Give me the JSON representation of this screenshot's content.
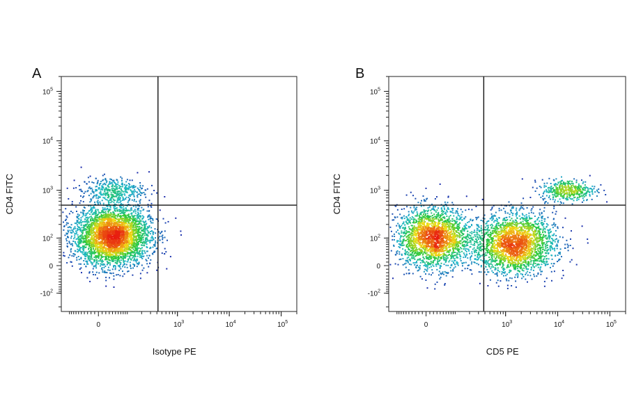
{
  "figure": {
    "colors": {
      "low": "#1a1aa8",
      "mid": "#1fb8c8",
      "high": "#e81c10",
      "frame": "#222222",
      "gate": "#111111"
    }
  },
  "chart_data": [
    {
      "panel": "A",
      "type": "scatter",
      "style": "density dot plot (pseudocolor)",
      "scale": "biexponential (logicle)",
      "xlabel": "Isotype PE",
      "ylabel": "CD4 FITC",
      "x_ticks": [
        {
          "value": 0,
          "base": "0",
          "exp": ""
        },
        {
          "value": 1000,
          "base": "10",
          "exp": "3"
        },
        {
          "value": 10000,
          "base": "10",
          "exp": "4"
        },
        {
          "value": 100000,
          "base": "10",
          "exp": "5"
        }
      ],
      "y_ticks": [
        {
          "value": -100,
          "base": "-10",
          "exp": "2"
        },
        {
          "value": 0,
          "base": "0",
          "exp": ""
        },
        {
          "value": 100,
          "base": "10",
          "exp": "2"
        },
        {
          "value": 1000,
          "base": "10",
          "exp": "3"
        },
        {
          "value": 10000,
          "base": "10",
          "exp": "4"
        },
        {
          "value": 100000,
          "base": "10",
          "exp": "5"
        }
      ],
      "xlim": [
        -150,
        200000
      ],
      "ylim": [
        -250,
        200000
      ],
      "gates": {
        "x": 420,
        "y": 500
      },
      "populations": [
        {
          "name": "negative",
          "x": 40,
          "y": 110,
          "count": 3600,
          "spread_x": 0.85,
          "spread_y": 0.7
        },
        {
          "name": "CD4+",
          "x": 40,
          "y": 1000,
          "count": 380,
          "spread_x": 0.7,
          "spread_y": 0.3
        }
      ]
    },
    {
      "panel": "B",
      "type": "scatter",
      "style": "density dot plot (pseudocolor)",
      "scale": "biexponential (logicle)",
      "xlabel": "CD5 PE",
      "ylabel": "CD4 FITC",
      "x_ticks": [
        {
          "value": 0,
          "base": "0",
          "exp": ""
        },
        {
          "value": 1000,
          "base": "10",
          "exp": "3"
        },
        {
          "value": 10000,
          "base": "10",
          "exp": "4"
        },
        {
          "value": 100000,
          "base": "10",
          "exp": "5"
        }
      ],
      "y_ticks": [
        {
          "value": -100,
          "base": "-10",
          "exp": "2"
        },
        {
          "value": 0,
          "base": "0",
          "exp": ""
        },
        {
          "value": 100,
          "base": "10",
          "exp": "2"
        },
        {
          "value": 1000,
          "base": "10",
          "exp": "3"
        },
        {
          "value": 10000,
          "base": "10",
          "exp": "4"
        },
        {
          "value": 100000,
          "base": "10",
          "exp": "5"
        }
      ],
      "xlim": [
        -150,
        200000
      ],
      "ylim": [
        -250,
        200000
      ],
      "gates": {
        "x": 380,
        "y": 500
      },
      "populations": [
        {
          "name": "CD5- CD4-",
          "x": 20,
          "y": 100,
          "count": 2200,
          "spread_x": 0.8,
          "spread_y": 0.7
        },
        {
          "name": "CD5+ CD4-",
          "x": 1500,
          "y": 70,
          "count": 2400,
          "spread_x": 0.9,
          "spread_y": 0.7
        },
        {
          "name": "CD5+ CD4+",
          "x": 16000,
          "y": 1000,
          "count": 420,
          "spread_x": 0.6,
          "spread_y": 0.25
        }
      ]
    }
  ]
}
